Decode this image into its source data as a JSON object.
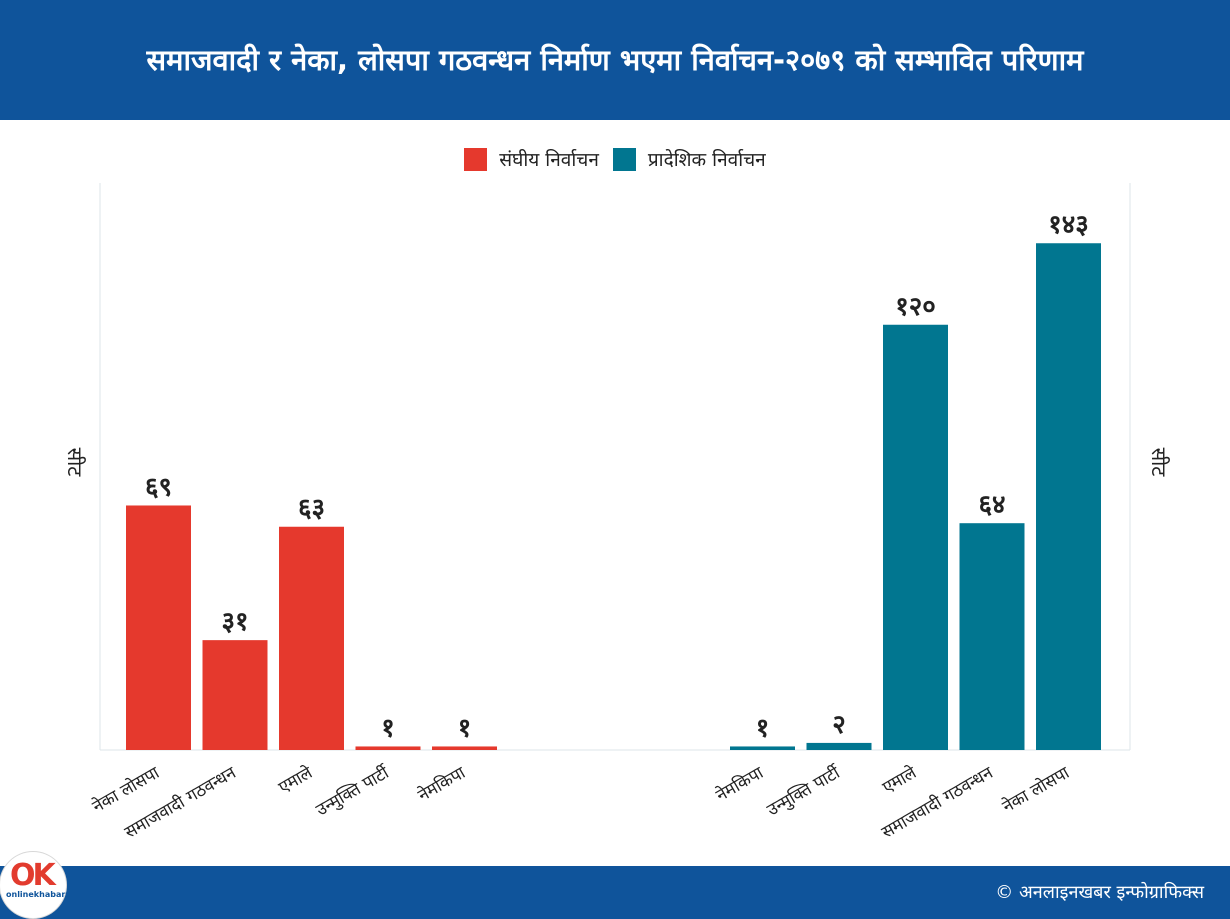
{
  "title": "समाजवादी र नेका, लोसपा गठवन्धन निर्माण भएमा निर्वाचन-२०७९ को सम्भावित परिणाम",
  "credit": "अनलाइनखबर इन्फोग्राफिक्स",
  "logo_text": {
    "main": "OK",
    "brand": "onlinekhabar"
  },
  "colors": {
    "header": "#0f549b",
    "federal": "#e5392d",
    "provincial": "#017690"
  },
  "legend": {
    "federal": "संघीय निर्वाचन",
    "provincial": "प्रादेशिक निर्वाचन"
  },
  "chart_data": {
    "type": "bar",
    "ylabel": "सीट",
    "ylim": [
      0,
      160
    ],
    "grid": false,
    "legend_position": "top",
    "series": [
      {
        "name": "संघीय निर्वाचन",
        "color": "#e5392d",
        "categories": [
          "नेका लोसपा",
          "समाजवादी गठवन्धन",
          "एमाले",
          "उन्मुक्ति पार्टी",
          "नेमकिपा"
        ],
        "values": [
          69,
          31,
          63,
          1,
          1
        ],
        "labels": [
          "६९",
          "३१",
          "६३",
          "१",
          "१"
        ]
      },
      {
        "name": "प्रादेशिक निर्वाचन",
        "color": "#017690",
        "categories": [
          "नेमकिपा",
          "उन्मुक्ति पार्टी",
          "एमाले",
          "समाजवादी गठवन्धन",
          "नेका लोसपा"
        ],
        "values": [
          1,
          2,
          120,
          64,
          143
        ],
        "labels": [
          "१",
          "२",
          "१२०",
          "६४",
          "१४३"
        ]
      }
    ]
  }
}
